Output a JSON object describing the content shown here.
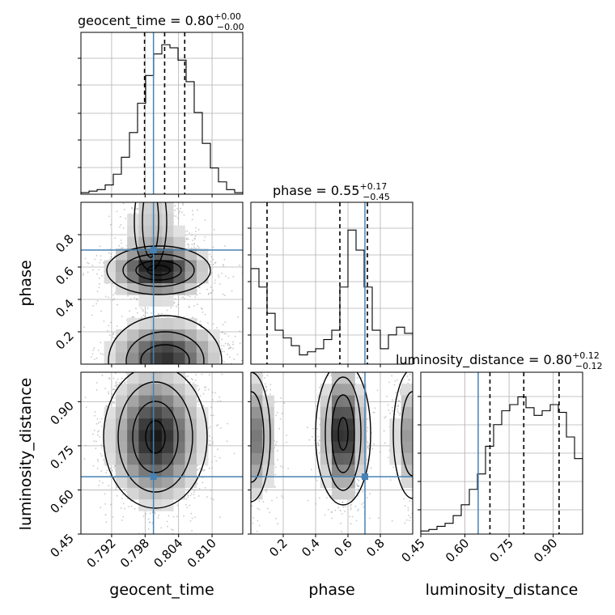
{
  "chart_data": {
    "type": "corner",
    "parameters": [
      "geocent_time",
      "phase",
      "luminosity_distance"
    ],
    "truths": {
      "geocent_time": 0.7995,
      "phase": 0.705,
      "luminosity_distance": 0.645
    },
    "titles": [
      {
        "name": "geocent_time",
        "median": "0.80",
        "plus": "+0.00",
        "minus": "−0.00"
      },
      {
        "name": "phase",
        "median": "0.55",
        "plus": "+0.17",
        "minus": "−0.45"
      },
      {
        "name": "luminosity_distance",
        "median": "0.80",
        "plus": "+0.12",
        "minus": "−0.12"
      }
    ],
    "axis_ranges": {
      "geocent_time": [
        0.7865,
        0.8155
      ],
      "phase": [
        0.0,
        1.0
      ],
      "luminosity_distance": [
        0.45,
        1.0
      ]
    },
    "ticks": {
      "geocent_time": [
        "0.792",
        "0.798",
        "0.804",
        "0.810"
      ],
      "phase_y": [
        "0.2",
        "0.4",
        "0.6",
        "0.8"
      ],
      "phase_x": [
        "0.2",
        "0.4",
        "0.6",
        "0.8"
      ],
      "luminosity_distance_y": [
        "0.45",
        "0.60",
        "0.75",
        "0.90"
      ],
      "luminosity_distance_x": [
        "0.45",
        "0.60",
        "0.75",
        "0.90"
      ]
    },
    "quantiles": {
      "geocent_time": [
        0.7979,
        0.8015,
        0.8051
      ],
      "phase": [
        0.1,
        0.55,
        0.72
      ],
      "luminosity_distance": [
        0.685,
        0.8,
        0.92
      ]
    },
    "hist_geocent_time": [
      0.01,
      0.02,
      0.03,
      0.06,
      0.13,
      0.24,
      0.4,
      0.59,
      0.77,
      0.91,
      0.97,
      0.95,
      0.87,
      0.73,
      0.53,
      0.33,
      0.17,
      0.08,
      0.03,
      0.01
    ],
    "hist_phase": [
      0.62,
      0.5,
      0.33,
      0.22,
      0.17,
      0.12,
      0.06,
      0.08,
      0.1,
      0.16,
      0.22,
      0.5,
      0.87,
      0.74,
      0.5,
      0.22,
      0.1,
      0.19,
      0.24,
      0.2
    ],
    "hist_luminosity_distance": [
      0.02,
      0.03,
      0.05,
      0.07,
      0.12,
      0.19,
      0.29,
      0.39,
      0.57,
      0.71,
      0.8,
      0.84,
      0.89,
      0.82,
      0.77,
      0.8,
      0.84,
      0.79,
      0.63,
      0.49
    ]
  }
}
